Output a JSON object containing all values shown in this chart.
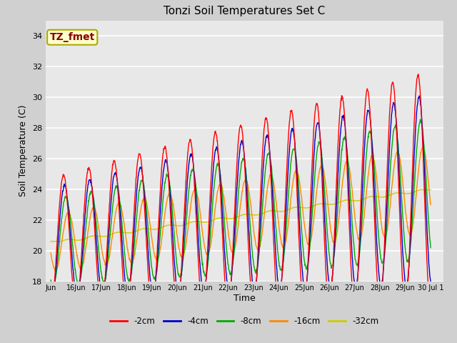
{
  "title": "Tonzi Soil Temperatures Set C",
  "xlabel": "Time",
  "ylabel": "Soil Temperature (C)",
  "ylim": [
    18,
    35
  ],
  "yticks": [
    18,
    20,
    22,
    24,
    26,
    28,
    30,
    32,
    34
  ],
  "fig_bg": "#d0d0d0",
  "plot_bg": "#e8e8e8",
  "series_colors": [
    "#ff0000",
    "#0000cc",
    "#00aa00",
    "#ff8800",
    "#cccc00"
  ],
  "series_labels": [
    "-2cm",
    "-4cm",
    "-8cm",
    "-16cm",
    "-32cm"
  ],
  "annotation_text": "TZ_fmet",
  "annotation_color": "#880000",
  "annotation_bg": "#ffffcc",
  "annotation_border": "#aaaa00",
  "tick_labels": [
    "Jun 16Jun",
    "17Jun",
    "18Jun",
    "19Jun",
    "20Jun",
    "21Jun",
    "22Jun",
    "23Jun",
    "24Jun",
    "25Jun",
    "26Jun",
    "27Jun",
    "28Jun",
    "29Jun",
    "30 Jul 1"
  ]
}
